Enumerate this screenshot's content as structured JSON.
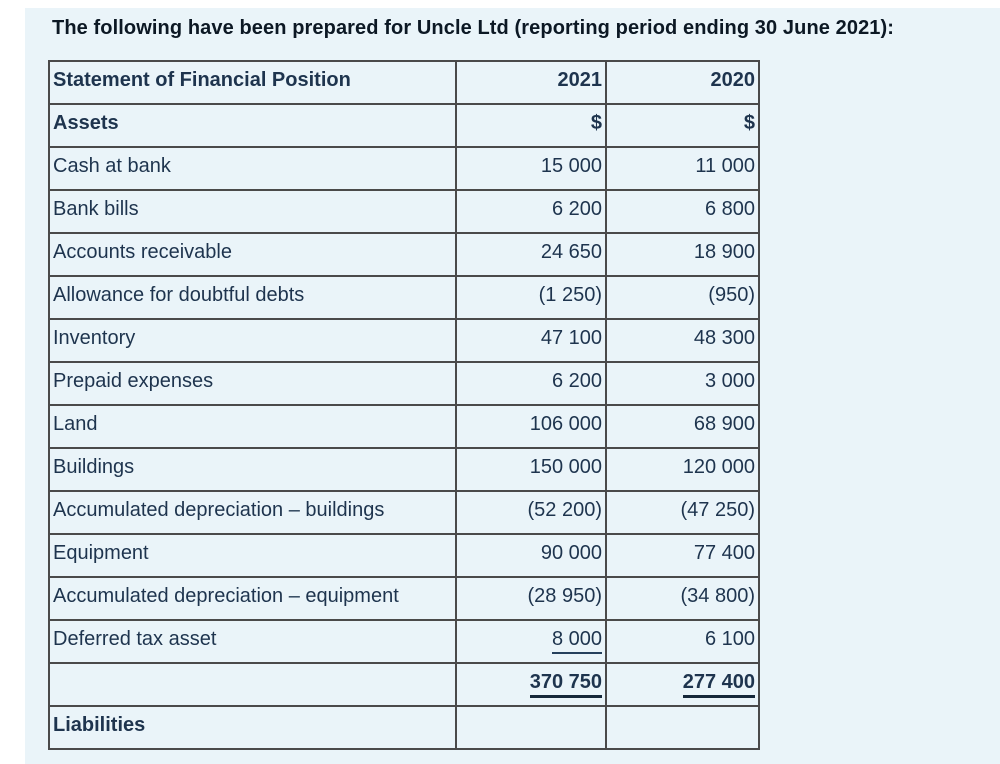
{
  "page": {
    "title": "The following have been prepared for Uncle Ltd (reporting period ending 30 June 2021):",
    "background_color": "#eaf4f9",
    "margin_color": "#ffffff",
    "text_color": "#1e344e",
    "border_color": "#4a4a4a"
  },
  "table": {
    "header": {
      "col1": "Statement of Financial Position",
      "col2": "2021",
      "col3": "2020"
    },
    "rows": [
      {
        "label": "Assets",
        "v2021": "$",
        "v2020": "$",
        "style": "section"
      },
      {
        "label": "Cash at bank",
        "v2021": "15 000",
        "v2020": "11 000",
        "style": "normal"
      },
      {
        "label": "Bank bills",
        "v2021": "6 200",
        "v2020": "6 800",
        "style": "normal"
      },
      {
        "label": "Accounts receivable",
        "v2021": "24 650",
        "v2020": "18 900",
        "style": "normal"
      },
      {
        "label": "Allowance for doubtful debts",
        "v2021": "(1 250)",
        "v2020": "(950)",
        "style": "normal"
      },
      {
        "label": "Inventory",
        "v2021": "47 100",
        "v2020": "48 300",
        "style": "normal"
      },
      {
        "label": "Prepaid expenses",
        "v2021": "6 200",
        "v2020": "3 000",
        "style": "normal"
      },
      {
        "label": "Land",
        "v2021": "106 000",
        "v2020": "68 900",
        "style": "normal"
      },
      {
        "label": "Buildings",
        "v2021": "150 000",
        "v2020": "120 000",
        "style": "normal"
      },
      {
        "label": "Accumulated depreciation – buildings",
        "v2021": "(52 200)",
        "v2020": "(47 250)",
        "style": "normal"
      },
      {
        "label": "Equipment",
        "v2021": "90 000",
        "v2020": "77 400",
        "style": "normal"
      },
      {
        "label": "Accumulated depreciation – equipment",
        "v2021": "(28 950)",
        "v2020": "(34 800)",
        "style": "normal"
      },
      {
        "label": "Deferred tax asset",
        "v2021": "8 000",
        "v2020": "6 100",
        "style": "normal",
        "underline_2021": true
      },
      {
        "label": "",
        "v2021": "370 750",
        "v2020": "277 400",
        "style": "total"
      },
      {
        "label": "Liabilities",
        "v2021": "",
        "v2020": "",
        "style": "section"
      }
    ]
  }
}
